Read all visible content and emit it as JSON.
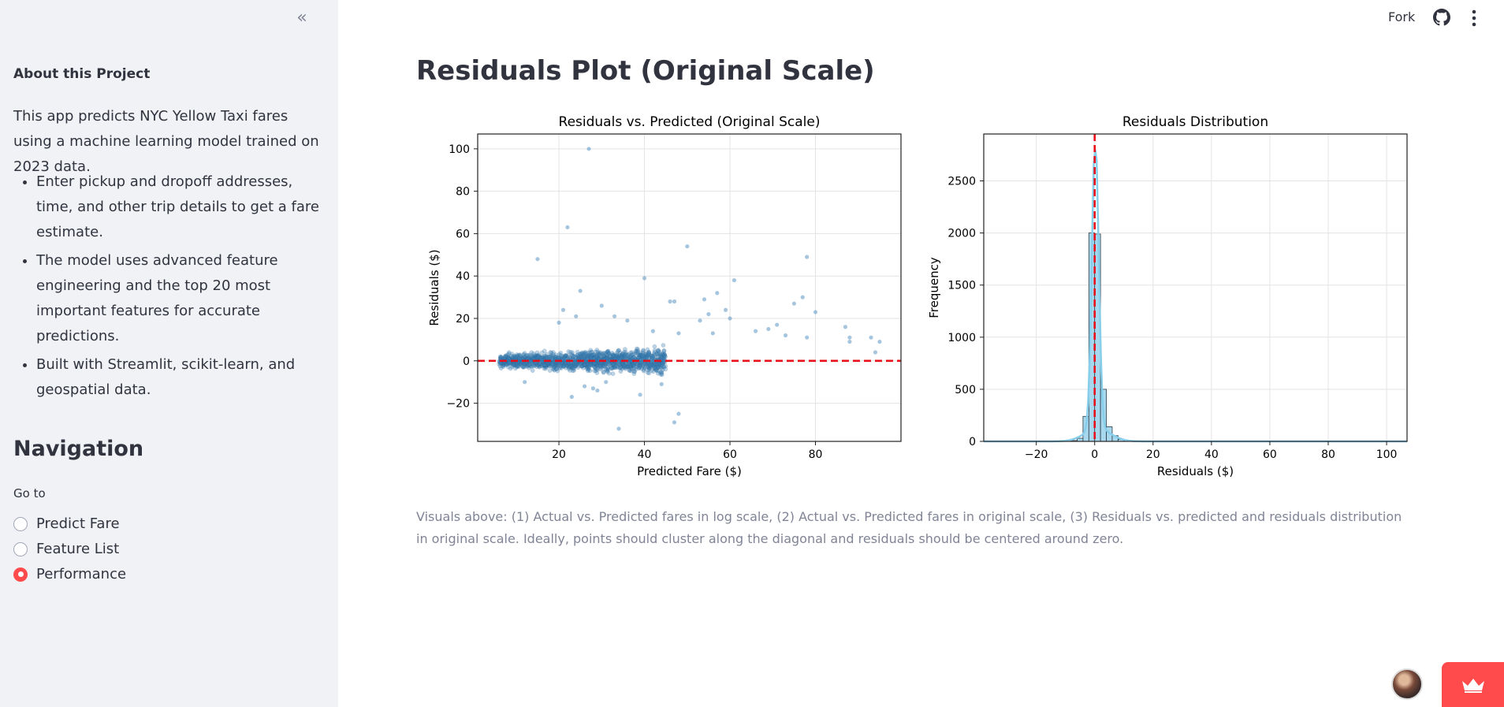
{
  "sidebar": {
    "collapse_icon": "double-chevron-left-icon",
    "about_heading": "About this Project",
    "about_text": "This app predicts NYC Yellow Taxi fares using a machine learning model trained on 2023 data.",
    "bullets": [
      "Enter pickup and dropoff addresses, time, and other trip details to get a fare estimate.",
      "The model uses advanced feature engineering and the top 20 most important features for accurate predictions.",
      "Built with Streamlit, scikit-learn, and geospatial data."
    ],
    "nav_heading": "Navigation",
    "goto_label": "Go to",
    "nav_options": [
      {
        "label": "Predict Fare",
        "selected": false
      },
      {
        "label": "Feature List",
        "selected": false
      },
      {
        "label": "Performance",
        "selected": true
      }
    ]
  },
  "topbar": {
    "fork_label": "Fork",
    "github_icon": "github-icon",
    "menu_icon": "kebab-menu-icon"
  },
  "main": {
    "title": "Residuals Plot (Original Scale)",
    "caption": "Visuals above: (1) Actual vs. Predicted fares in log scale, (2) Actual vs. Predicted fares in original scale, (3) Residuals vs. predicted and residuals distribution in original scale. Ideally, points should cluster along the diagonal and residuals should be centered around zero."
  },
  "colors": {
    "accent": "#ff4b4b",
    "scatter_point": "#3a80b8",
    "hist_fill": "#a8d8ee",
    "kde_line": "#87ceeb",
    "reference_line": "#e8111b"
  },
  "chart_data": [
    {
      "type": "scatter",
      "title": "Residuals vs. Predicted (Original Scale)",
      "xlabel": "Predicted Fare ($)",
      "ylabel": "Residuals ($)",
      "xlim": [
        1,
        100
      ],
      "ylim": [
        -38,
        107
      ],
      "xticks": [
        20,
        40,
        60,
        80
      ],
      "yticks": [
        -20,
        0,
        20,
        40,
        60,
        80,
        100
      ],
      "grid": true,
      "reference_line": {
        "y": 0,
        "style": "dashed",
        "color": "#e8111b"
      },
      "points": [
        [
          27,
          100
        ],
        [
          22,
          63
        ],
        [
          15,
          48
        ],
        [
          50,
          54
        ],
        [
          78,
          49
        ],
        [
          40,
          39
        ],
        [
          61,
          38
        ],
        [
          25,
          33
        ],
        [
          57,
          32
        ],
        [
          54,
          29
        ],
        [
          46,
          28
        ],
        [
          47,
          28
        ],
        [
          77,
          30
        ],
        [
          75,
          27
        ],
        [
          80,
          23
        ],
        [
          60,
          20
        ],
        [
          55,
          22
        ],
        [
          53,
          19
        ],
        [
          59,
          24
        ],
        [
          69,
          15
        ],
        [
          66,
          14
        ],
        [
          71,
          17
        ],
        [
          87,
          16
        ],
        [
          88,
          11
        ],
        [
          93,
          11
        ],
        [
          95,
          9
        ],
        [
          88,
          9
        ],
        [
          94,
          4
        ],
        [
          78,
          11
        ],
        [
          73,
          12
        ],
        [
          56,
          13
        ],
        [
          48,
          13
        ],
        [
          42,
          14
        ],
        [
          30,
          26
        ],
        [
          24,
          21
        ],
        [
          21,
          24
        ],
        [
          20,
          18
        ],
        [
          33,
          21
        ],
        [
          36,
          19
        ],
        [
          23,
          -17
        ],
        [
          34,
          -32
        ],
        [
          47,
          -29
        ],
        [
          48,
          -25
        ],
        [
          39,
          -16
        ],
        [
          44,
          -11
        ],
        [
          12,
          -10
        ],
        [
          29,
          -14
        ],
        [
          28,
          -13
        ],
        [
          26,
          -12
        ],
        [
          31,
          -10
        ]
      ],
      "dense_band": {
        "x_range": [
          6,
          45
        ],
        "y_center": 0,
        "y_spread": 7,
        "note": "thousands of points"
      }
    },
    {
      "type": "bar",
      "subtype": "histogram_with_kde",
      "title": "Residuals Distribution",
      "xlabel": "Residuals ($)",
      "ylabel": "Frequency",
      "xlim": [
        -38,
        107
      ],
      "ylim": [
        0,
        2950
      ],
      "xticks": [
        -20,
        0,
        20,
        40,
        60,
        80,
        100
      ],
      "yticks": [
        0,
        500,
        1000,
        1500,
        2000,
        2500
      ],
      "grid": true,
      "reference_line": {
        "x": 0,
        "style": "dashed",
        "color": "#e8111b"
      },
      "bin_width": 2,
      "bins": [
        {
          "x": -10,
          "count": 2
        },
        {
          "x": -8,
          "count": 8
        },
        {
          "x": -6,
          "count": 30
        },
        {
          "x": -4,
          "count": 240
        },
        {
          "x": -2,
          "count": 2000
        },
        {
          "x": 0,
          "count": 1990
        },
        {
          "x": 2,
          "count": 500
        },
        {
          "x": 4,
          "count": 140
        },
        {
          "x": 6,
          "count": 55
        },
        {
          "x": 8,
          "count": 20
        },
        {
          "x": 10,
          "count": 8
        },
        {
          "x": 12,
          "count": 4
        }
      ],
      "kde_peak": 2800
    }
  ],
  "footer": {
    "avatar_icon": "user-avatar",
    "badge_icon": "streamlit-crown-icon"
  }
}
